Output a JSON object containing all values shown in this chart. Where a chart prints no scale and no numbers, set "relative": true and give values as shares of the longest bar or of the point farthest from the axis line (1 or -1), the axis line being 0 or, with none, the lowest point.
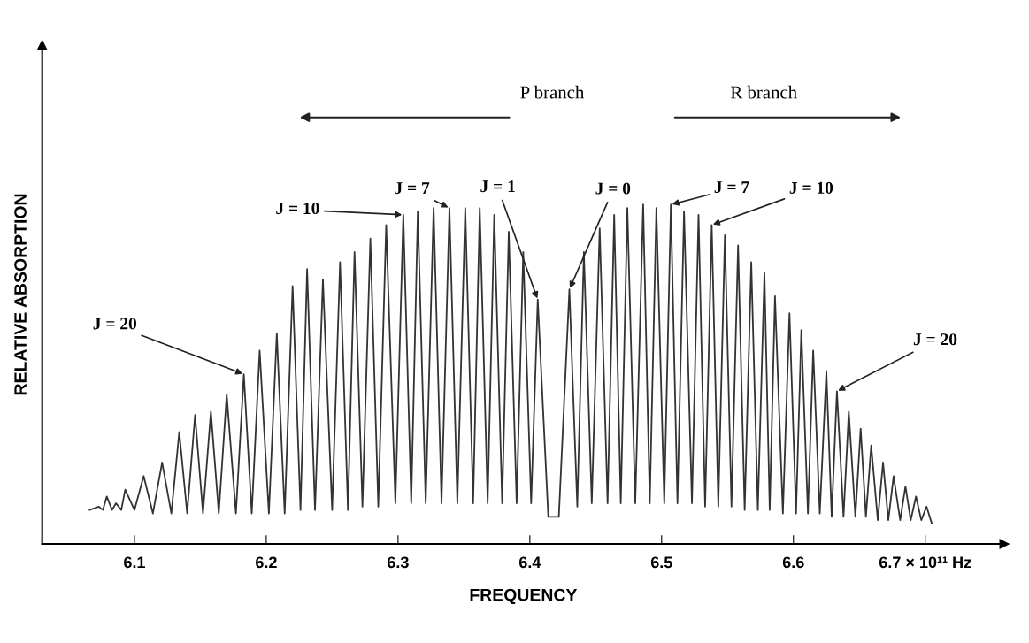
{
  "chart_data": {
    "type": "line",
    "relative": true,
    "xlabel": "FREQUENCY",
    "ylabel": "RELATIVE ABSORPTION",
    "xlim": [
      6.03,
      6.76
    ],
    "xticks": [
      6.1,
      6.2,
      6.3,
      6.4,
      6.5,
      6.6,
      {
        "value": 6.7,
        "label": "6.7 × 10¹¹ Hz"
      }
    ],
    "grid": false,
    "legend": false,
    "marker": "none",
    "line_style": "solid",
    "annotations": [
      "P branch",
      "R branch",
      {
        "text": "J = 20",
        "x": 6.183,
        "y": 0.5
      },
      {
        "text": "J = 10",
        "x": 6.304,
        "y": 0.97
      },
      {
        "text": "J = 7",
        "x": 6.339,
        "y": 0.99
      },
      {
        "text": "J = 1",
        "x": 6.406,
        "y": 0.72
      },
      {
        "text": "J = 0",
        "x": 6.43,
        "y": 0.75
      },
      {
        "text": "J = 7",
        "x": 6.507,
        "y": 1.0
      },
      {
        "text": "J = 10",
        "x": 6.538,
        "y": 0.94
      },
      {
        "text": "J = 20",
        "x": 6.633,
        "y": 0.45
      }
    ],
    "series": [
      {
        "color": "#333333",
        "x": [
          6.066,
          6.073,
          6.076,
          6.079,
          6.083,
          6.086,
          6.09,
          6.093,
          6.1,
          6.107,
          6.114,
          6.121,
          6.128,
          6.134,
          6.14,
          6.146,
          6.152,
          6.158,
          6.164,
          6.17,
          6.177,
          6.183,
          6.189,
          6.195,
          6.202,
          6.208,
          6.214,
          6.22,
          6.226,
          6.231,
          6.237,
          6.243,
          6.25,
          6.256,
          6.262,
          6.267,
          6.273,
          6.279,
          6.285,
          6.291,
          6.298,
          6.304,
          6.31,
          6.315,
          6.321,
          6.327,
          6.333,
          6.339,
          6.345,
          6.351,
          6.357,
          6.362,
          6.368,
          6.373,
          6.379,
          6.384,
          6.39,
          6.395,
          6.401,
          6.406,
          6.414,
          6.422,
          6.43,
          6.436,
          6.441,
          6.447,
          6.453,
          6.459,
          6.464,
          6.469,
          6.474,
          6.48,
          6.486,
          6.491,
          6.496,
          6.502,
          6.507,
          6.512,
          6.517,
          6.523,
          6.528,
          6.533,
          6.538,
          6.543,
          6.548,
          6.553,
          6.558,
          6.563,
          6.568,
          6.573,
          6.578,
          6.582,
          6.586,
          6.592,
          6.597,
          6.602,
          6.606,
          6.611,
          6.615,
          6.62,
          6.625,
          6.629,
          6.633,
          6.638,
          6.642,
          6.647,
          6.651,
          6.655,
          6.659,
          6.664,
          6.668,
          6.672,
          6.676,
          6.681,
          6.685,
          6.689,
          6.693,
          6.697,
          6.701,
          6.705
        ],
        "values": [
          0.1,
          0.11,
          0.1,
          0.14,
          0.1,
          0.12,
          0.1,
          0.16,
          0.1,
          0.2,
          0.09,
          0.24,
          0.09,
          0.33,
          0.09,
          0.38,
          0.09,
          0.39,
          0.09,
          0.44,
          0.09,
          0.5,
          0.09,
          0.57,
          0.09,
          0.62,
          0.09,
          0.76,
          0.1,
          0.81,
          0.1,
          0.78,
          0.1,
          0.83,
          0.1,
          0.86,
          0.11,
          0.9,
          0.11,
          0.94,
          0.12,
          0.97,
          0.12,
          0.98,
          0.12,
          0.99,
          0.12,
          0.99,
          0.12,
          0.99,
          0.12,
          0.99,
          0.12,
          0.97,
          0.12,
          0.92,
          0.12,
          0.86,
          0.12,
          0.72,
          0.08,
          0.08,
          0.75,
          0.11,
          0.86,
          0.12,
          0.93,
          0.12,
          0.97,
          0.12,
          0.99,
          0.12,
          1.0,
          0.12,
          0.99,
          0.12,
          1.0,
          0.12,
          0.98,
          0.12,
          0.97,
          0.11,
          0.94,
          0.11,
          0.91,
          0.11,
          0.88,
          0.1,
          0.83,
          0.1,
          0.8,
          0.1,
          0.73,
          0.09,
          0.68,
          0.09,
          0.63,
          0.09,
          0.57,
          0.09,
          0.51,
          0.08,
          0.45,
          0.08,
          0.39,
          0.08,
          0.34,
          0.08,
          0.29,
          0.07,
          0.24,
          0.07,
          0.2,
          0.07,
          0.17,
          0.07,
          0.14,
          0.07,
          0.11,
          0.06
        ]
      }
    ]
  }
}
